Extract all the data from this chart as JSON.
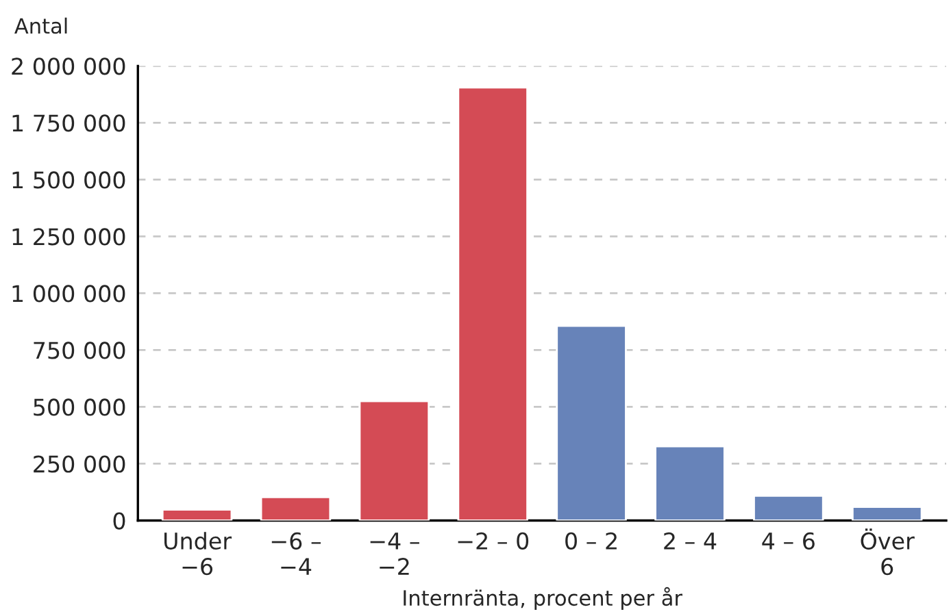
{
  "chart_data": {
    "type": "bar",
    "ylabel": "Antal",
    "xlabel": "Internränta, procent per år",
    "categories": [
      "Under\n−6",
      "−6 –\n−4",
      "−4 –\n−2",
      "−2 – 0",
      "0 – 2",
      "2 – 4",
      "4 – 6",
      "Över\n6"
    ],
    "values": [
      48000,
      103000,
      525000,
      1905000,
      856000,
      326000,
      109000,
      60000
    ],
    "colors": [
      "#d44b55",
      "#d44b55",
      "#d44b55",
      "#d44b55",
      "#6783b9",
      "#6783b9",
      "#6783b9",
      "#6783b9"
    ],
    "ylim": [
      0,
      2000000
    ],
    "yticks": [
      {
        "value": 0,
        "label": "0"
      },
      {
        "value": 250000,
        "label": "250 000"
      },
      {
        "value": 500000,
        "label": "500 000"
      },
      {
        "value": 750000,
        "label": "750 000"
      },
      {
        "value": 1000000,
        "label": "1 000 000"
      },
      {
        "value": 1250000,
        "label": "1 250 000"
      },
      {
        "value": 1500000,
        "label": "1 500 000"
      },
      {
        "value": 1750000,
        "label": "1 750 000"
      },
      {
        "value": 2000000,
        "label": "2 000 000"
      }
    ],
    "grid": "y"
  }
}
